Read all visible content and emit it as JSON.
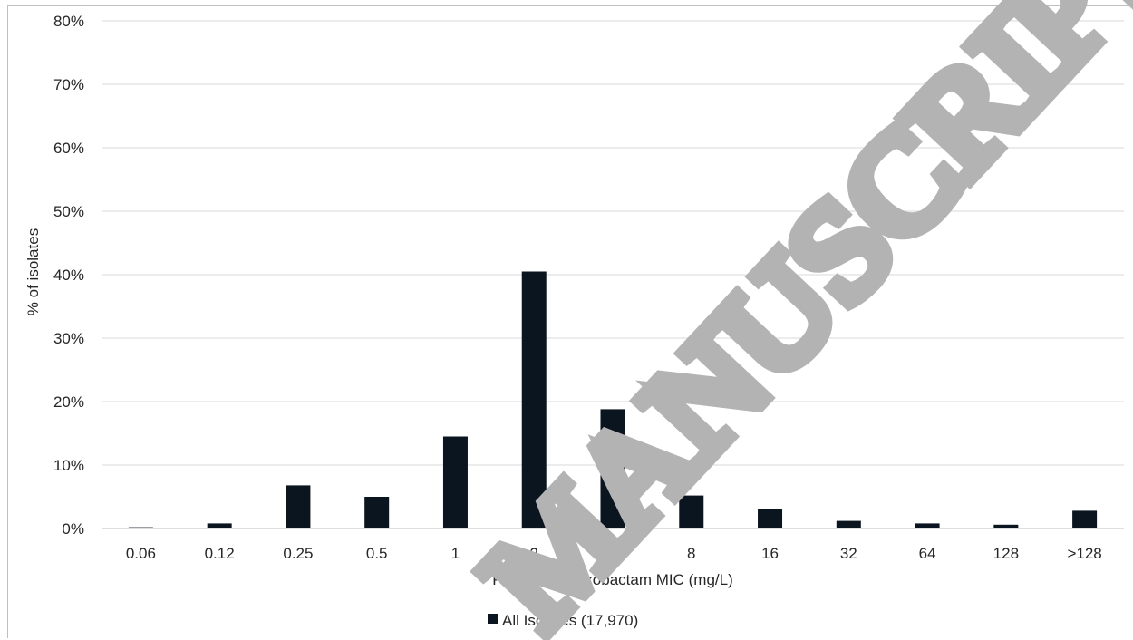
{
  "chart_data": {
    "type": "bar",
    "categories": [
      "0.06",
      "0.12",
      "0.25",
      "0.5",
      "1",
      "2",
      "4",
      "8",
      "16",
      "32",
      "64",
      "128",
      ">128"
    ],
    "series": [
      {
        "name": "All Isolates (17,970)",
        "values": [
          0.2,
          0.8,
          6.8,
          5.0,
          14.5,
          40.5,
          18.8,
          5.2,
          3.0,
          1.2,
          0.8,
          0.6,
          2.8
        ],
        "color": "#0b1520"
      }
    ],
    "xlabel": "Piperacillin-tazobactam MIC (mg/L)",
    "ylabel": "% of isolates",
    "ylim": [
      0,
      80
    ],
    "yticks": [
      "0%",
      "10%",
      "20%",
      "30%",
      "40%",
      "50%",
      "60%",
      "70%",
      "80%"
    ],
    "grid": true,
    "legend_position": "bottom"
  },
  "watermark": "MANUSCRIPT",
  "colors": {
    "bar": "#0b1520",
    "grid": "#d9d9d9",
    "text": "#262626",
    "watermark": "#b3b3b3"
  }
}
